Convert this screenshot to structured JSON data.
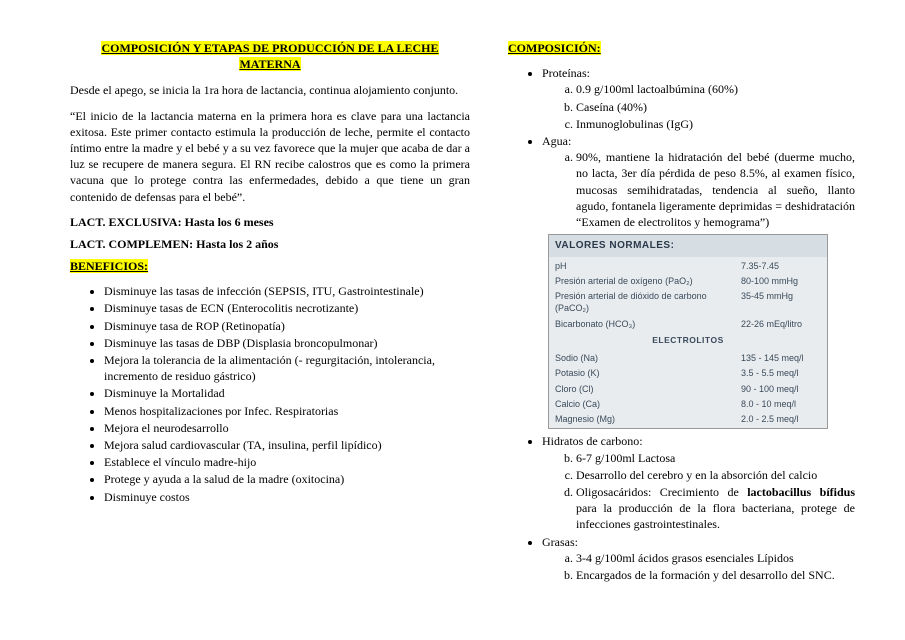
{
  "title": "COMPOSICIÓN Y ETAPAS DE PRODUCCIÓN DE LA LECHE MATERNA",
  "intro1": "Desde el apego, se inicia la 1ra hora de lactancia, continua alojamiento conjunto.",
  "intro2": "“El inicio de la lactancia materna en la primera hora es clave para una lactancia exitosa. Este primer contacto estimula la producción de leche, permite el contacto íntimo entre la madre y el bebé y a su vez favorece que la mujer que acaba de dar a luz se recupere de manera segura. El RN recibe calostros que es como la primera vacuna que lo protege contra las enfermedades, debido a que tiene un gran contenido de defensas para el bebé”.",
  "lact1": "LACT. EXCLUSIVA: Hasta los 6 meses",
  "lact2": "LACT. COMPLEMEN: Hasta los 2 años",
  "beneficios_label": "BENEFICIOS:",
  "beneficios": [
    "Disminuye las tasas de infección (SEPSIS, ITU, Gastrointestinale)",
    "Disminuye tasas de ECN (Enterocolitis necrotizante)",
    "Disminuye tasa de ROP (Retinopatía)",
    "Disminuye las tasas de DBP (Displasia broncopulmonar)",
    "Mejora la tolerancia de la alimentación (- regurgitación, intolerancia, incremento de residuo gástrico)",
    "Disminuye la Mortalidad",
    "Menos hospitalizaciones por Infec. Respiratorias",
    "Mejora el neurodesarrollo",
    "Mejora salud cardiovascular (TA, insulina, perfil lipídico)",
    "Establece el vínculo madre-hijo",
    "Protege y ayuda a la salud de la madre (oxitocina)",
    "Disminuye costos"
  ],
  "composicion_label": "COMPOSICIÓN:",
  "proteinas_label": "Proteínas:",
  "proteinas": [
    "0.9 g/100ml lactoalbúmina (60%)",
    "Caseína (40%)",
    "Inmunoglobulinas (IgG)"
  ],
  "agua_label": "Agua:",
  "agua_item": "90%, mantiene la hidratación del bebé (duerme mucho, no lacta, 3er día pérdida de peso 8.5%, al examen físico, mucosas semihidratadas, tendencia al sueño, llanto agudo, fontanela ligeramente deprimidas = deshidratación “Examen de electrolitos y hemograma”)",
  "valores": {
    "header": "VALORES NORMALES:",
    "rows1": [
      {
        "k": "pH",
        "v": "7.35-7.45"
      },
      {
        "k": "Presión arterial de oxígeno (PaO₂)",
        "v": "80-100 mmHg"
      },
      {
        "k": "Presión arterial de dióxido de carbono (PaCO₂)",
        "v": "35-45 mmHg"
      },
      {
        "k": "Bicarbonato (HCO₃)",
        "v": "22-26 mEq/litro"
      }
    ],
    "sub": "ELECTROLITOS",
    "rows2": [
      {
        "k": "Sodio (Na)",
        "v": "135 - 145 meq/l"
      },
      {
        "k": "Potasio (K)",
        "v": "3.5 - 5.5 meq/l"
      },
      {
        "k": "Cloro (Cl)",
        "v": "90 - 100 meq/l"
      },
      {
        "k": "Calcio (Ca)",
        "v": "8.0 - 10 meq/l"
      },
      {
        "k": "Magnesio (Mg)",
        "v": "2.0 - 2.5 meq/l"
      }
    ]
  },
  "hidratos_label": "Hidratos de carbono:",
  "hidratos": [
    "6-7 g/100ml Lactosa",
    "Desarrollo del cerebro y en la absorción del calcio",
    "Oligosacáridos: Crecimiento de <b>lactobacillus bífidus</b> para la producción de la flora bacteriana, protege de infecciones gastrointestinales."
  ],
  "grasas_label": "Grasas:",
  "grasas": [
    "3-4 g/100ml ácidos grasos esenciales Lípidos",
    "Encargados de la formación y del desarrollo del SNC."
  ]
}
